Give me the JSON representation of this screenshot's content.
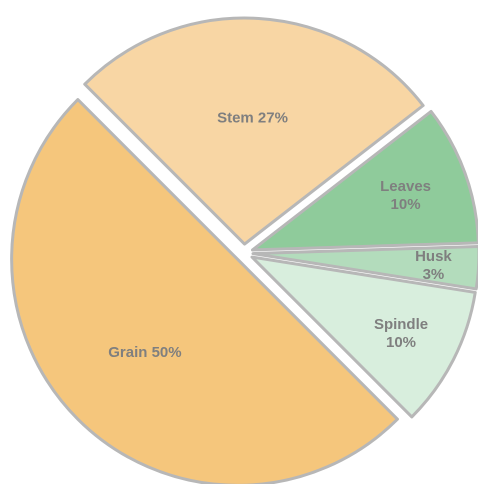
{
  "chart_data": {
    "type": "pie",
    "title": "",
    "slices": [
      {
        "label": "Grain",
        "value": 50,
        "display": "Grain 50%",
        "color": "#f5c67c",
        "lines": [
          "Grain 50%"
        ]
      },
      {
        "label": "Stem",
        "value": 27,
        "display": "Stem 27%",
        "color": "#f8d6a4",
        "lines": [
          "Stem 27%"
        ]
      },
      {
        "label": "Leaves",
        "value": 10,
        "display": "Leaves 10%",
        "color": "#8fcb9b",
        "lines": [
          "Leaves",
          "10%"
        ]
      },
      {
        "label": "Husk",
        "value": 3,
        "display": "Husk 3%",
        "color": "#b3dcbc",
        "lines": [
          "Husk",
          "3%"
        ]
      },
      {
        "label": "Spindle",
        "value": 10,
        "display": "Spindle 10%",
        "color": "#d8eedd",
        "lines": [
          "Spindle",
          "10%"
        ]
      }
    ],
    "border_color": "#b7b7b7",
    "label_color": "#7f7f7f",
    "legend": "none",
    "exploded": true
  }
}
